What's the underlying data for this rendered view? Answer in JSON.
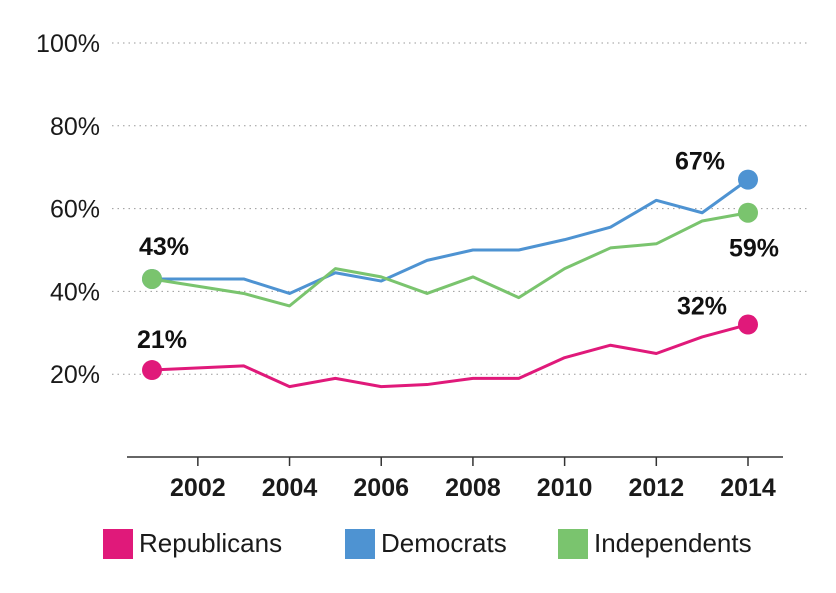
{
  "chart_data": {
    "type": "line",
    "x": [
      2001,
      2002,
      2003,
      2004,
      2005,
      2006,
      2007,
      2008,
      2009,
      2010,
      2011,
      2012,
      2013,
      2014
    ],
    "x_ticks": [
      2002,
      2004,
      2006,
      2008,
      2010,
      2012,
      2014
    ],
    "y_ticks": [
      20,
      40,
      60,
      80,
      100
    ],
    "y_tick_labels": [
      "20%",
      "40%",
      "60%",
      "80%",
      "100%"
    ],
    "ylim": [
      0,
      100
    ],
    "grid": "horizontal dotted",
    "legend_placement": "bottom",
    "series": [
      {
        "name": "Republicans",
        "color": "#e0197a",
        "values": [
          21,
          null,
          22,
          17,
          19,
          17,
          17.5,
          19,
          19,
          24,
          27,
          25,
          29,
          32
        ]
      },
      {
        "name": "Democrats",
        "color": "#4e93d2",
        "values": [
          43,
          null,
          43,
          39.5,
          44.5,
          42.5,
          47.5,
          50,
          50,
          52.5,
          55.5,
          62,
          59,
          67
        ]
      },
      {
        "name": "Independents",
        "color": "#7ac46e",
        "values": [
          43,
          null,
          39.5,
          36.5,
          45.5,
          43.5,
          39.5,
          43.5,
          38.5,
          45.5,
          50.5,
          51.5,
          57,
          59
        ]
      }
    ],
    "annotations": [
      {
        "series": 1,
        "x": 2001,
        "text": "43%",
        "dx": 12,
        "dy": -24
      },
      {
        "series": 0,
        "x": 2001,
        "text": "21%",
        "dx": 10,
        "dy": -22
      },
      {
        "series": 1,
        "x": 2014,
        "text": "67%",
        "dx": -48,
        "dy": -10
      },
      {
        "series": 2,
        "x": 2014,
        "text": "59%",
        "dx": 6,
        "dy": 44
      },
      {
        "series": 0,
        "x": 2014,
        "text": "32%",
        "dx": -46,
        "dy": -10
      }
    ]
  }
}
